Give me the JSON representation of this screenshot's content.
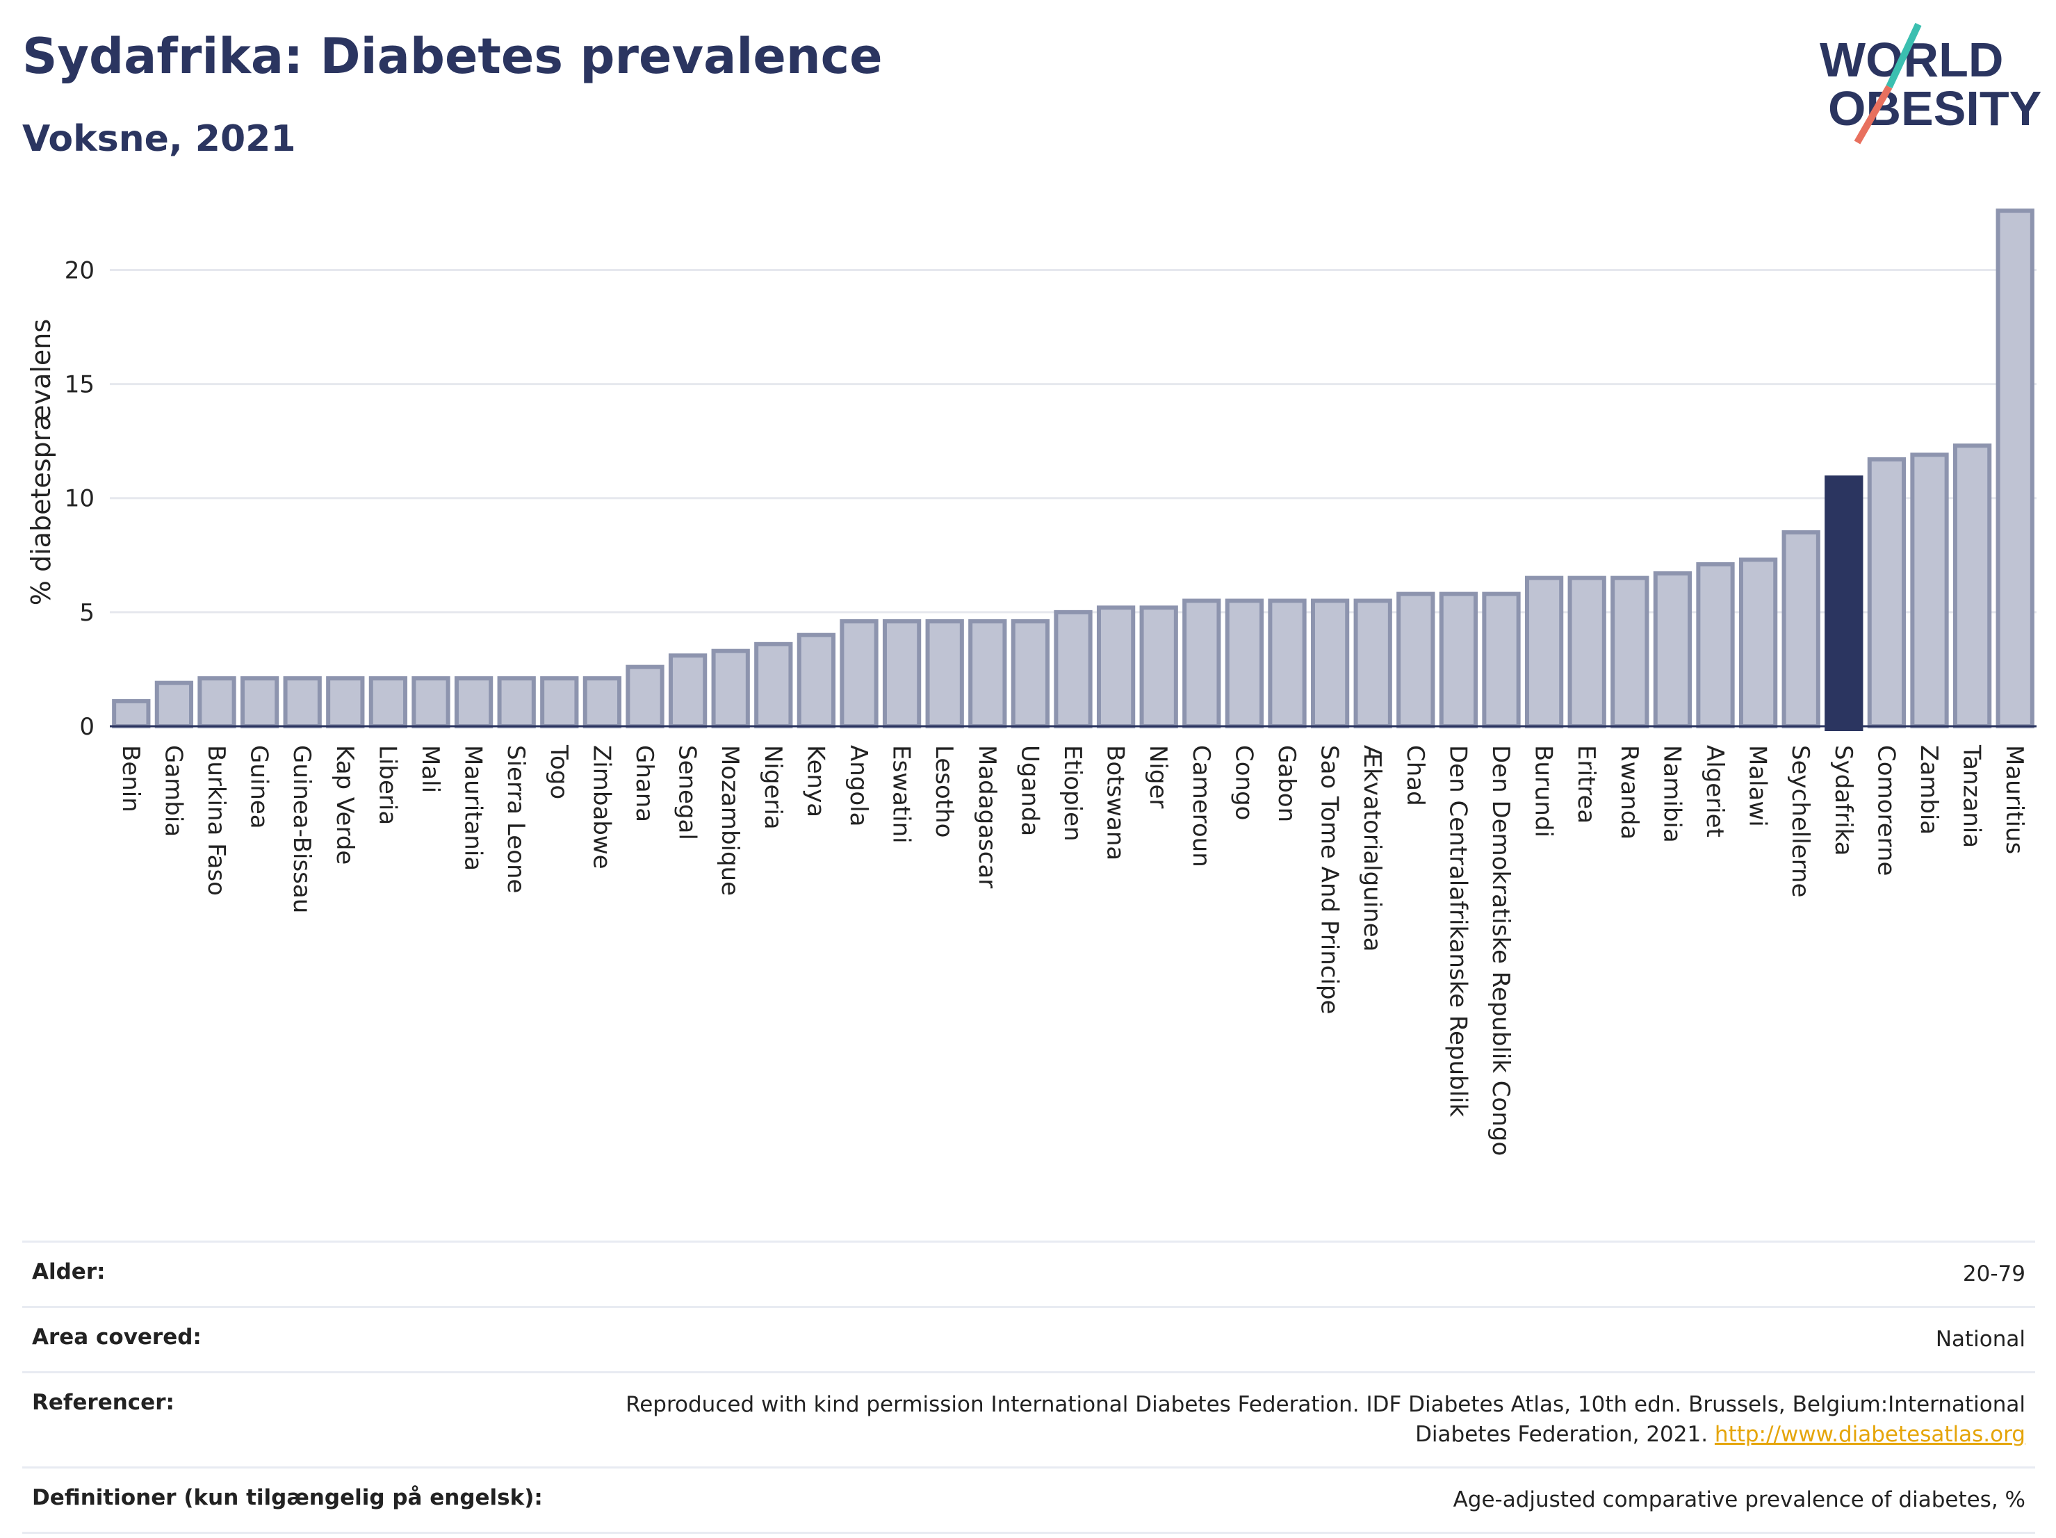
{
  "header": {
    "title": "Sydafrika: Diabetes prevalence",
    "subtitle": "Voksne, 2021"
  },
  "logo": {
    "line1": "WORLD",
    "line2": "OBESITY"
  },
  "colors": {
    "bar": "#bfc3d3",
    "bar_border": "#8d94ae",
    "highlight": "#2b3560",
    "grid": "#e6e8ee",
    "logo_slash_top": "#3bbfb0",
    "logo_slash_bottom": "#e8705e"
  },
  "chart_data": {
    "type": "bar",
    "title": "Sydafrika: Diabetes prevalence",
    "subtitle": "Voksne, 2021",
    "xlabel": "",
    "ylabel": "% diabetesprævalens",
    "ylim": [
      0,
      23
    ],
    "yticks": [
      0,
      5,
      10,
      15,
      20
    ],
    "grid": true,
    "highlight": "Sydafrika",
    "categories": [
      "Benin",
      "Gambia",
      "Burkina Faso",
      "Guinea",
      "Guinea-Bissau",
      "Kap Verde",
      "Liberia",
      "Mali",
      "Mauritania",
      "Sierra Leone",
      "Togo",
      "Zimbabwe",
      "Ghana",
      "Senegal",
      "Mozambique",
      "Nigeria",
      "Kenya",
      "Angola",
      "Eswatini",
      "Lesotho",
      "Madagascar",
      "Uganda",
      "Etiopien",
      "Botswana",
      "Niger",
      "Cameroun",
      "Congo",
      "Gabon",
      "Sao Tome And Principe",
      "Ækvatorialguinea",
      "Chad",
      "Den Centralafrikanske Republik",
      "Den Demokratiske Republik Congo",
      "Burundi",
      "Eritrea",
      "Rwanda",
      "Namibia",
      "Algeriet",
      "Malawi",
      "Seychellerne",
      "Sydafrika",
      "Comorerne",
      "Zambia",
      "Tanzania",
      "Mauritius"
    ],
    "values": [
      1.1,
      1.9,
      2.1,
      2.1,
      2.1,
      2.1,
      2.1,
      2.1,
      2.1,
      2.1,
      2.1,
      2.1,
      2.6,
      3.1,
      3.3,
      3.6,
      4.0,
      4.6,
      4.6,
      4.6,
      4.6,
      4.6,
      5.0,
      5.2,
      5.2,
      5.5,
      5.5,
      5.5,
      5.5,
      5.5,
      5.8,
      5.8,
      5.8,
      6.5,
      6.5,
      6.5,
      6.7,
      7.1,
      7.3,
      8.5,
      10.9,
      11.7,
      11.9,
      12.3,
      22.6
    ]
  },
  "info": [
    {
      "key": "Alder:",
      "value": "20-79"
    },
    {
      "key": "Area covered:",
      "value": "National"
    },
    {
      "key": "Referencer:",
      "value": "Reproduced with kind permission International Diabetes Federation.  IDF Diabetes Atlas, 10th edn. Brussels, Belgium:International Diabetes Federation, 2021.",
      "link": "http://www.diabetesatlas.org"
    },
    {
      "key": "Definitioner (kun tilgængelig på engelsk):",
      "value": "Age-adjusted comparative prevalence of diabetes, %"
    }
  ]
}
